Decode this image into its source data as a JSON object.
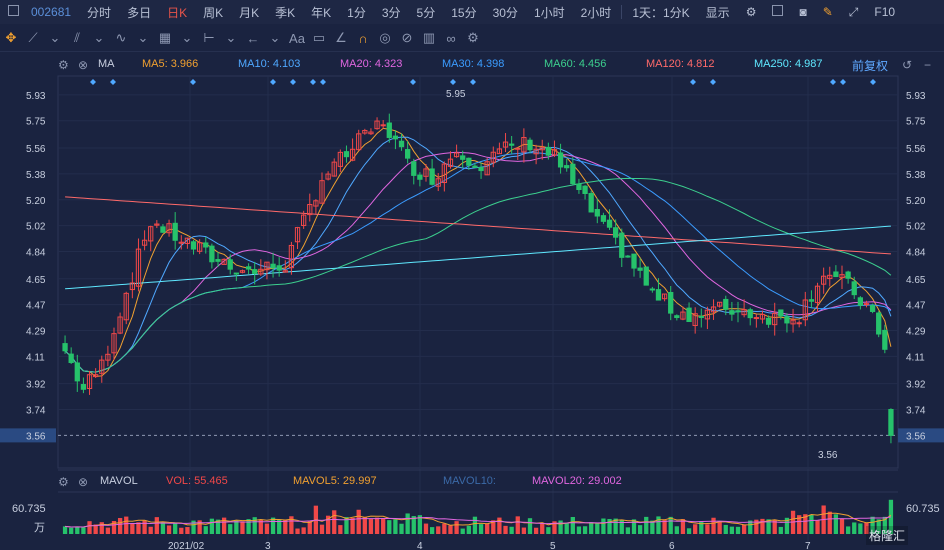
{
  "toolbar": {
    "symbol": "002681",
    "periods": [
      "分时",
      "多日",
      "日K",
      "周K",
      "月K",
      "季K",
      "年K",
      "1分",
      "3分",
      "5分",
      "15分",
      "30分",
      "1小时",
      "2小时"
    ],
    "active_period": "日K",
    "range_label": "1天：1分K",
    "display_label": "显示",
    "f10_label": "F10"
  },
  "ma_bar": {
    "name": "MA",
    "ma5": "MA5: 3.966",
    "ma10": "MA10: 4.103",
    "ma20": "MA20: 4.323",
    "ma30": "MA30: 4.398",
    "ma60": "MA60: 4.456",
    "ma120": "MA120: 4.812",
    "ma250": "MA250: 4.987",
    "adjust": "前复权",
    "colors": {
      "ma5": "#f0a030",
      "ma10": "#4fa8ff",
      "ma20": "#e066e0",
      "ma30": "#3b9cff",
      "ma60": "#3ccf8e",
      "ma120": "#ff6a6a",
      "ma250": "#5fe8ff"
    }
  },
  "price_axis": {
    "ticks": [
      "5.93",
      "5.75",
      "5.56",
      "5.38",
      "5.20",
      "5.02",
      "4.84",
      "4.65",
      "4.47",
      "4.29",
      "4.11",
      "3.92",
      "3.74",
      "3.56"
    ],
    "current_price": "3.56",
    "high_label": "5.95",
    "low_label": "3.56"
  },
  "date_axis": [
    "2021/02",
    "3",
    "4",
    "5",
    "6",
    "7"
  ],
  "vol_bar": {
    "name": "MAVOL",
    "vol": "VOL: 55.465",
    "mavol5": "MAVOL5: 29.997",
    "mavol10": "MAVOL10:",
    "mavol20": "MAVOL20: 29.002",
    "axis_top": "60.735",
    "unit": "万"
  },
  "brand": "格隆汇",
  "colors": {
    "up": "#f04848",
    "down": "#26c26b",
    "bg": "#1a2340"
  }
}
